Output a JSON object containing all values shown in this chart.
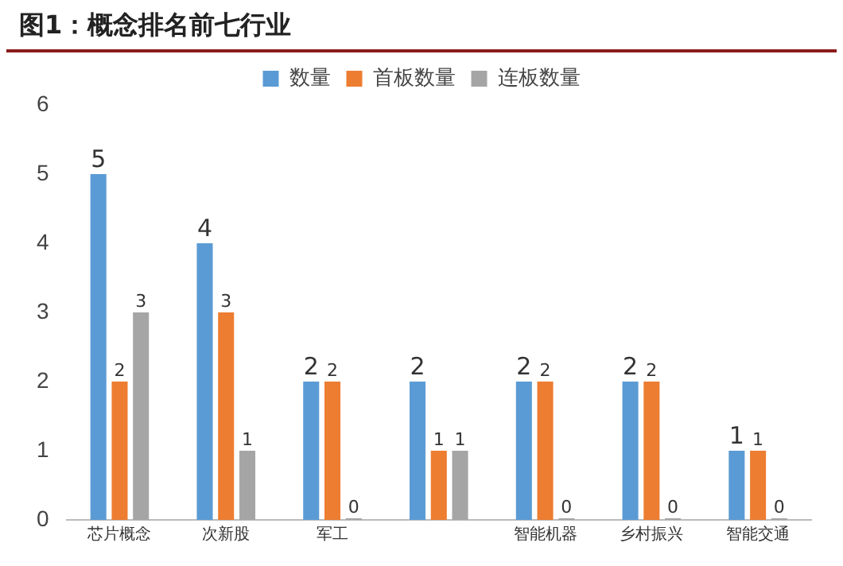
{
  "chart_data": {
    "type": "bar",
    "title": "图1：概念排名前七行业",
    "categories": [
      "芯片概念",
      "次新股",
      "军工",
      null,
      "智能机器",
      "乡村振兴",
      "智能交通"
    ],
    "series": [
      {
        "name": "数量",
        "color": "#5b9bd5",
        "values": [
          5,
          4,
          2,
          2,
          2,
          2,
          1
        ]
      },
      {
        "name": "首板数量",
        "color": "#ed7d31",
        "values": [
          2,
          3,
          2,
          1,
          2,
          2,
          1
        ]
      },
      {
        "name": "连板数量",
        "color": "#a5a5a5",
        "values": [
          3,
          1,
          0,
          1,
          0,
          0,
          0
        ]
      }
    ],
    "ylim": [
      0,
      6
    ],
    "yticks": [
      0,
      1,
      2,
      3,
      4,
      5,
      6
    ],
    "grid": false,
    "legend": "top",
    "data_labels": true
  }
}
